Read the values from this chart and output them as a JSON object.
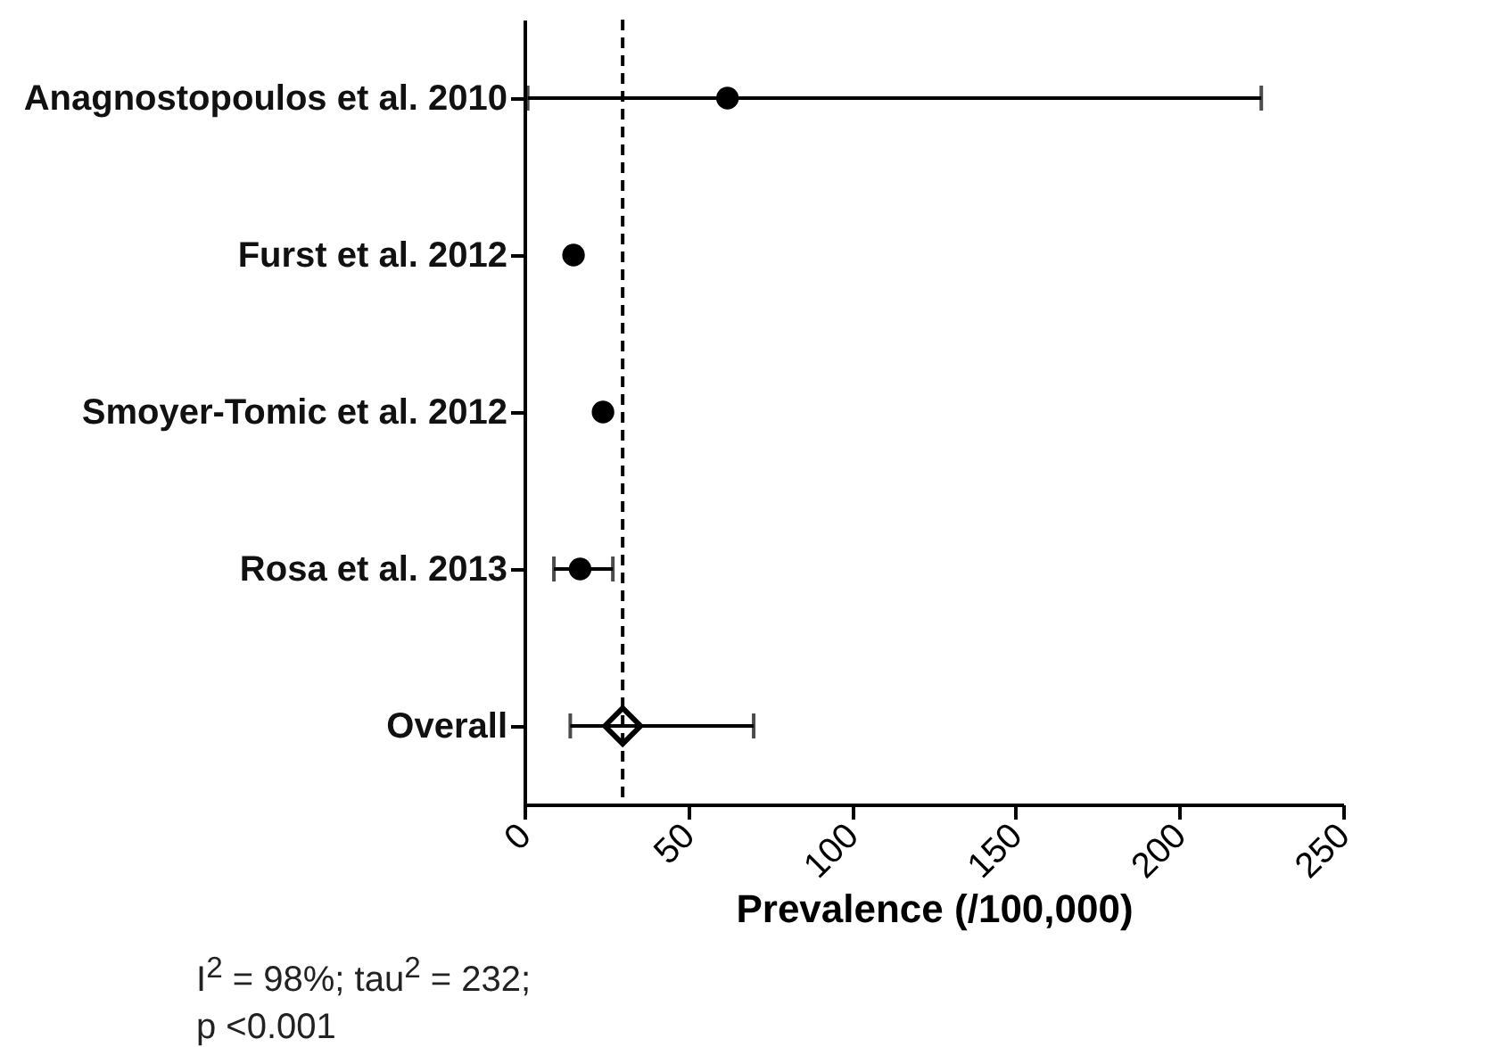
{
  "chart_data": {
    "type": "scatter",
    "orientation": "horizontal",
    "categories": [
      "Anagnostopoulos et al. 2010",
      "Furst et al. 2012",
      "Smoyer-Tomic et al. 2012",
      "Rosa et al. 2013",
      "Overall"
    ],
    "xlabel": "Prevalence (/100,000)",
    "xlim": [
      0,
      250
    ],
    "xticks": [
      0,
      50,
      100,
      150,
      200,
      250
    ],
    "grid": false,
    "series": [
      {
        "color": "#000000",
        "marker": "circle",
        "values": [
          62,
          15,
          24,
          17,
          null
        ],
        "errors": [
          [
            1,
            225
          ],
          null,
          null,
          [
            9,
            27
          ],
          null
        ]
      },
      {
        "color": "#000000",
        "marker": "diamond",
        "values": [
          null,
          null,
          null,
          null,
          30
        ],
        "errors": [
          null,
          null,
          null,
          null,
          [
            14,
            70
          ]
        ]
      }
    ],
    "ref_lines": [
      {
        "axis": "x",
        "value": 30,
        "line_style": "dashed",
        "color": "#000000"
      }
    ],
    "annotations": [
      "I$^{2}$ = 98%; tau$^{2}$ = 232;",
      "p <0.001"
    ]
  }
}
